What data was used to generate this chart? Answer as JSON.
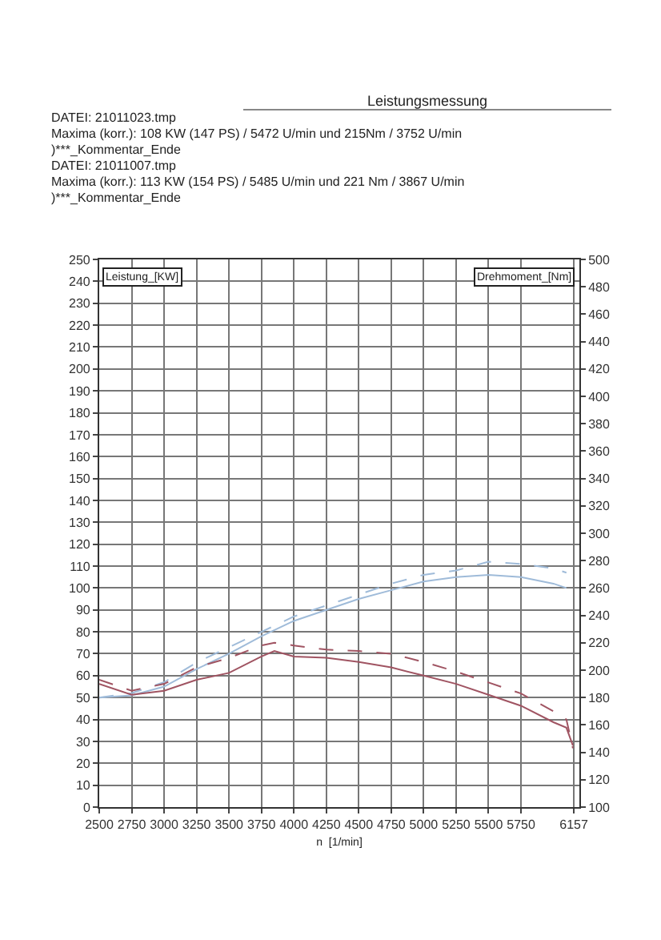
{
  "chart_data": {
    "type": "line",
    "title": "Leistungsmessung",
    "annotations": [
      "DATEI: 21011023.tmp",
      "Maxima (korr.): 108 KW (147 PS) / 5472 U/min  und  215Nm / 3752 U/min",
      ")***_Kommentar_Ende",
      "DATEI: 21011007.tmp",
      "Maxima (korr.):  113 KW (154 PS) / 5485 U/min  und   221 Nm / 3867 U/min",
      ")***_Kommentar_Ende"
    ],
    "xlabel": "n  [1/min]",
    "ylabel": "Leistung_[KW]",
    "y2label": "Drehmoment_[Nm]",
    "xlim": [
      2500,
      6200
    ],
    "xticks": [
      2500,
      2750,
      3000,
      3250,
      3500,
      3750,
      4000,
      4250,
      4500,
      4750,
      5000,
      5250,
      5500,
      5750,
      6157
    ],
    "ylim": [
      0,
      250
    ],
    "yticks": [
      0,
      10,
      20,
      30,
      40,
      50,
      60,
      70,
      80,
      90,
      100,
      110,
      120,
      130,
      140,
      150,
      160,
      170,
      180,
      190,
      200,
      210,
      220,
      230,
      240,
      250
    ],
    "y2lim": [
      100,
      500
    ],
    "y2ticks": [
      100,
      120,
      140,
      160,
      180,
      200,
      220,
      240,
      260,
      280,
      300,
      320,
      340,
      360,
      380,
      400,
      420,
      440,
      460,
      480,
      500
    ],
    "grid": true,
    "marker": "none",
    "series": [
      {
        "color": "#9fbbd9",
        "line_style": "solid",
        "x": [
          2500,
          2750,
          3000,
          3250,
          3500,
          3750,
          4000,
          4250,
          4500,
          4750,
          5000,
          5250,
          5500,
          5750,
          6000,
          6100
        ],
        "values": [
          50,
          51,
          55,
          63,
          70,
          78,
          85,
          90,
          95,
          99,
          103,
          105,
          106,
          105,
          102,
          100
        ]
      },
      {
        "color": "#9fbbd9",
        "line_style": "dashed",
        "x": [
          2500,
          2750,
          3000,
          3250,
          3500,
          3750,
          4000,
          4250,
          4500,
          4750,
          5000,
          5250,
          5500,
          5750,
          6000,
          6100
        ],
        "values": [
          50,
          52,
          57,
          66,
          73,
          80,
          87,
          92,
          97,
          102,
          106,
          108,
          112,
          111,
          109,
          107
        ]
      },
      {
        "color": "#a05462",
        "line_style": "solid",
        "axis": "y2",
        "x": [
          2500,
          2750,
          3000,
          3250,
          3500,
          3750,
          3850,
          4000,
          4250,
          4500,
          4750,
          5000,
          5250,
          5500,
          5750,
          6000,
          6100,
          6150
        ],
        "values": [
          190,
          182,
          185,
          193,
          198,
          210,
          214,
          210,
          209,
          206,
          202,
          196,
          190,
          182,
          174,
          162,
          158,
          145
        ]
      },
      {
        "color": "#a05462",
        "line_style": "dashed",
        "axis": "y2",
        "x": [
          2500,
          2750,
          3000,
          3250,
          3500,
          3750,
          3850,
          4000,
          4250,
          4500,
          4750,
          5000,
          5250,
          5500,
          5750,
          6000,
          6100,
          6150
        ],
        "values": [
          193,
          185,
          190,
          202,
          209,
          218,
          220,
          218,
          215,
          214,
          212,
          206,
          199,
          191,
          183,
          170,
          164,
          143
        ]
      }
    ]
  }
}
